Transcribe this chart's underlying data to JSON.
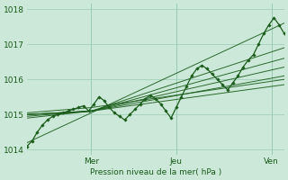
{
  "bg_color": "#cce8d8",
  "grid_color": "#99ccb3",
  "line_color": "#1a5c1a",
  "ylim": [
    1013.85,
    1018.15
  ],
  "xlim": [
    0,
    100
  ],
  "yticks": [
    1014,
    1015,
    1016,
    1017,
    1018
  ],
  "xtick_positions": [
    25,
    58,
    95
  ],
  "xtick_labels": [
    "Mer",
    "Jeu",
    "Ven"
  ],
  "xlabel": "Pression niveau de la mer( hPa )",
  "vlines": [
    25,
    58,
    95
  ],
  "fan_lines": [
    {
      "x": [
        0,
        25,
        100
      ],
      "y": [
        1014.2,
        1015.05,
        1017.6
      ]
    },
    {
      "x": [
        0,
        25,
        100
      ],
      "y": [
        1014.9,
        1015.1,
        1016.9
      ]
    },
    {
      "x": [
        0,
        25,
        100
      ],
      "y": [
        1014.95,
        1015.1,
        1016.6
      ]
    },
    {
      "x": [
        0,
        25,
        100
      ],
      "y": [
        1015.0,
        1015.1,
        1016.35
      ]
    },
    {
      "x": [
        0,
        25,
        100
      ],
      "y": [
        1015.0,
        1015.1,
        1016.1
      ]
    },
    {
      "x": [
        0,
        25,
        100
      ],
      "y": [
        1015.0,
        1015.1,
        1015.85
      ]
    },
    {
      "x": [
        0,
        25,
        100
      ],
      "y": [
        1015.05,
        1015.2,
        1016.0
      ]
    }
  ],
  "main_x": [
    0,
    2,
    4,
    6,
    8,
    10,
    12,
    14,
    16,
    18,
    20,
    22,
    24,
    26,
    28,
    30,
    32,
    34,
    36,
    38,
    40,
    42,
    44,
    46,
    48,
    50,
    52,
    54,
    56,
    58,
    60,
    62,
    64,
    66,
    68,
    70,
    72,
    74,
    76,
    78,
    80,
    82,
    84,
    86,
    88,
    90,
    92,
    94,
    96,
    98,
    100
  ],
  "main_y": [
    1014.1,
    1014.25,
    1014.5,
    1014.7,
    1014.85,
    1014.95,
    1015.0,
    1015.05,
    1015.1,
    1015.15,
    1015.2,
    1015.25,
    1015.1,
    1015.3,
    1015.5,
    1015.4,
    1015.2,
    1015.05,
    1014.95,
    1014.85,
    1015.0,
    1015.15,
    1015.3,
    1015.45,
    1015.55,
    1015.45,
    1015.3,
    1015.1,
    1014.9,
    1015.2,
    1015.5,
    1015.8,
    1016.1,
    1016.3,
    1016.4,
    1016.3,
    1016.15,
    1016.0,
    1015.85,
    1015.7,
    1015.9,
    1016.1,
    1016.35,
    1016.55,
    1016.7,
    1017.0,
    1017.3,
    1017.55,
    1017.75,
    1017.55,
    1017.3
  ]
}
